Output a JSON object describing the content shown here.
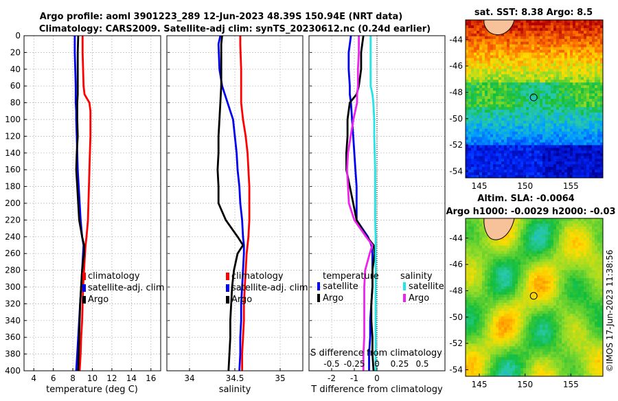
{
  "figure": {
    "title_line1": "Argo profile: aoml 3901223_289 12-Jun-2023 48.39S 150.94E (NRT data)",
    "title_line2": "Climatology: CARS2009. Satellite-adj clim: synTS_20230612.nc (0.24d earlier)",
    "credit": "©IMOS 17-Jun-2023 11:38:56"
  },
  "colors": {
    "climatology": "#ff0000",
    "satellite": "#0000ee",
    "argo": "#000000",
    "salinity_satellite": "#22e5e5",
    "salinity_argo": "#ee22ee"
  },
  "depth_ticks": [
    0,
    20,
    40,
    60,
    80,
    100,
    120,
    140,
    160,
    180,
    200,
    220,
    240,
    260,
    280,
    300,
    320,
    340,
    360,
    380,
    400
  ],
  "chart_data": [
    {
      "type": "line",
      "id": "temperature",
      "xlabel": "temperature (deg C)",
      "ylabel": "",
      "xlim": [
        3,
        17
      ],
      "ylim": [
        400,
        0
      ],
      "xticks": [
        4,
        6,
        8,
        10,
        12,
        14,
        16
      ],
      "grid": true,
      "y": [
        0,
        20,
        40,
        60,
        70,
        80,
        90,
        100,
        120,
        140,
        160,
        180,
        200,
        220,
        240,
        250,
        260,
        280,
        300,
        320,
        340,
        360,
        380,
        400
      ],
      "series": [
        {
          "name": "climatology",
          "color": "#ff0000",
          "values": [
            9.0,
            9.0,
            9.05,
            9.1,
            9.2,
            9.7,
            9.8,
            9.8,
            9.8,
            9.75,
            9.7,
            9.65,
            9.6,
            9.55,
            9.4,
            9.3,
            9.25,
            9.15,
            9.05,
            9.0,
            8.95,
            8.85,
            8.8,
            8.7
          ]
        },
        {
          "name": "satellite-adj. clim",
          "color": "#0000ee",
          "values": [
            8.2,
            8.2,
            8.25,
            8.3,
            8.3,
            8.3,
            8.35,
            8.35,
            8.4,
            8.45,
            8.5,
            8.6,
            8.7,
            8.8,
            8.95,
            9.1,
            9.05,
            8.95,
            8.85,
            8.75,
            8.65,
            8.55,
            8.45,
            8.35
          ]
        },
        {
          "name": "Argo",
          "color": "#000000",
          "values": [
            8.55,
            8.5,
            8.5,
            8.5,
            8.5,
            8.45,
            8.45,
            8.45,
            8.5,
            8.4,
            8.35,
            8.45,
            8.55,
            8.65,
            8.95,
            9.15,
            9.15,
            8.95,
            8.85,
            8.75,
            8.7,
            8.65,
            8.6,
            8.55
          ]
        }
      ],
      "legend": {
        "position": "center-right",
        "entries": [
          "climatology",
          "satellite-adj. clim",
          "Argo"
        ]
      }
    },
    {
      "type": "line",
      "id": "salinity",
      "xlabel": "salinity",
      "ylabel": "",
      "xlim": [
        33.75,
        35.25
      ],
      "ylim": [
        400,
        0
      ],
      "xticks": [
        34,
        34.5,
        35
      ],
      "grid": true,
      "y": [
        0,
        10,
        40,
        60,
        80,
        100,
        120,
        140,
        160,
        180,
        200,
        220,
        240,
        250,
        260,
        280,
        300,
        320,
        340,
        360,
        380,
        400
      ],
      "series": [
        {
          "name": "climatology",
          "color": "#ff0000",
          "values": [
            34.56,
            34.56,
            34.57,
            34.57,
            34.57,
            34.59,
            34.62,
            34.64,
            34.65,
            34.66,
            34.66,
            34.66,
            34.65,
            34.64,
            34.63,
            34.62,
            34.61,
            34.6,
            34.6,
            34.59,
            34.58,
            34.58
          ]
        },
        {
          "name": "satellite-adj. clim",
          "color": "#0000ee",
          "values": [
            34.34,
            34.32,
            34.33,
            34.36,
            34.42,
            34.48,
            34.5,
            34.52,
            34.53,
            34.55,
            34.56,
            34.58,
            34.59,
            34.6,
            34.6,
            34.59,
            34.58,
            34.57,
            34.57,
            34.56,
            34.56,
            34.55
          ]
        },
        {
          "name": "Argo",
          "color": "#000000",
          "values": [
            34.36,
            34.35,
            34.35,
            34.35,
            34.34,
            34.33,
            34.32,
            34.32,
            34.31,
            34.32,
            34.32,
            34.4,
            34.53,
            34.59,
            34.53,
            34.49,
            34.47,
            34.46,
            34.45,
            34.45,
            34.44,
            34.43
          ]
        }
      ],
      "legend": {
        "position": "center-right",
        "entries": [
          "climatology",
          "satellite-adj. clim",
          "Argo"
        ]
      }
    },
    {
      "type": "line",
      "id": "difference",
      "xlabel": "T difference from climatology",
      "x2label": "S difference from climatology",
      "ylabel": "",
      "xlim": [
        -3,
        3
      ],
      "x2lim": [
        -0.75,
        0.75
      ],
      "ylim": [
        400,
        0
      ],
      "xticks": [
        -2,
        -1,
        0
      ],
      "xticklabels": [
        "-2",
        "-1",
        "0"
      ],
      "x2ticks": [
        -0.5,
        -0.25,
        0,
        0.25,
        0.5
      ],
      "x2ticklabels": [
        "-0.5",
        "-0.25",
        "0",
        "0.25",
        "0.5"
      ],
      "grid": true,
      "y": [
        0,
        20,
        40,
        60,
        70,
        80,
        100,
        120,
        140,
        160,
        180,
        200,
        220,
        240,
        250,
        260,
        280,
        300,
        320,
        340,
        360,
        380,
        400
      ],
      "series": [
        {
          "name": "temperature satellite",
          "color": "#0000ee",
          "axis": "T",
          "values": [
            -1.15,
            -1.25,
            -1.25,
            -1.2,
            -1.2,
            -1.15,
            -1.1,
            -1.05,
            -1.0,
            -0.95,
            -0.9,
            -0.9,
            -0.9,
            -0.4,
            -0.25,
            -0.2,
            -0.2,
            -0.2,
            -0.25,
            -0.3,
            -0.3,
            -0.35,
            -0.35
          ]
        },
        {
          "name": "temperature Argo",
          "color": "#000000",
          "axis": "T",
          "values": [
            -0.6,
            -0.7,
            -0.7,
            -0.8,
            -0.9,
            -1.2,
            -1.3,
            -1.3,
            -1.35,
            -1.35,
            -1.2,
            -1.05,
            -0.9,
            -0.45,
            -0.15,
            -0.1,
            -0.2,
            -0.2,
            -0.25,
            -0.25,
            -0.2,
            -0.2,
            -0.15
          ]
        },
        {
          "name": "salinity satellite",
          "color": "#22e5e5",
          "axis": "S",
          "values": [
            -0.07,
            -0.07,
            -0.07,
            -0.07,
            -0.05,
            -0.04,
            -0.03,
            -0.03,
            -0.025,
            -0.02,
            -0.02,
            -0.02,
            -0.02,
            -0.015,
            -0.015,
            -0.015,
            -0.015,
            -0.015,
            -0.015,
            -0.015,
            -0.015,
            -0.015,
            -0.015
          ]
        },
        {
          "name": "salinity Argo",
          "color": "#ee22ee",
          "axis": "S",
          "values": [
            -0.2,
            -0.2,
            -0.21,
            -0.21,
            -0.22,
            -0.22,
            -0.26,
            -0.29,
            -0.32,
            -0.33,
            -0.32,
            -0.31,
            -0.25,
            -0.12,
            -0.05,
            -0.08,
            -0.13,
            -0.14,
            -0.14,
            -0.14,
            -0.14,
            -0.15,
            -0.15
          ]
        }
      ],
      "legend": {
        "position": "center",
        "temperature_header": "temperature",
        "salinity_header": "salinity",
        "temperature_entries": [
          "satellite",
          "Argo"
        ],
        "salinity_entries": [
          "satellite",
          "Argo"
        ]
      }
    },
    {
      "type": "heatmap",
      "id": "sst_map",
      "title": "sat. SST: 8.38 Argo: 8.5",
      "xlim": [
        143.5,
        158.5
      ],
      "ylim": [
        -54.5,
        -42.5
      ],
      "xticks": [
        145,
        150,
        155
      ],
      "yticks": [
        -44,
        -46,
        -48,
        -50,
        -52,
        -54
      ],
      "marker": {
        "lon": 150.94,
        "lat": -48.39
      }
    },
    {
      "type": "heatmap",
      "id": "sla_map",
      "title_line1": "Altim. SLA: -0.0064",
      "title_line2": "Argo h1000: -0.0029 h2000: -0.03",
      "xlim": [
        143.5,
        158.5
      ],
      "ylim": [
        -54.5,
        -42.5
      ],
      "xticks": [
        145,
        150,
        155
      ],
      "yticks": [
        -44,
        -46,
        -48,
        -50,
        -52,
        -54
      ],
      "marker": {
        "lon": 150.94,
        "lat": -48.39
      }
    }
  ]
}
